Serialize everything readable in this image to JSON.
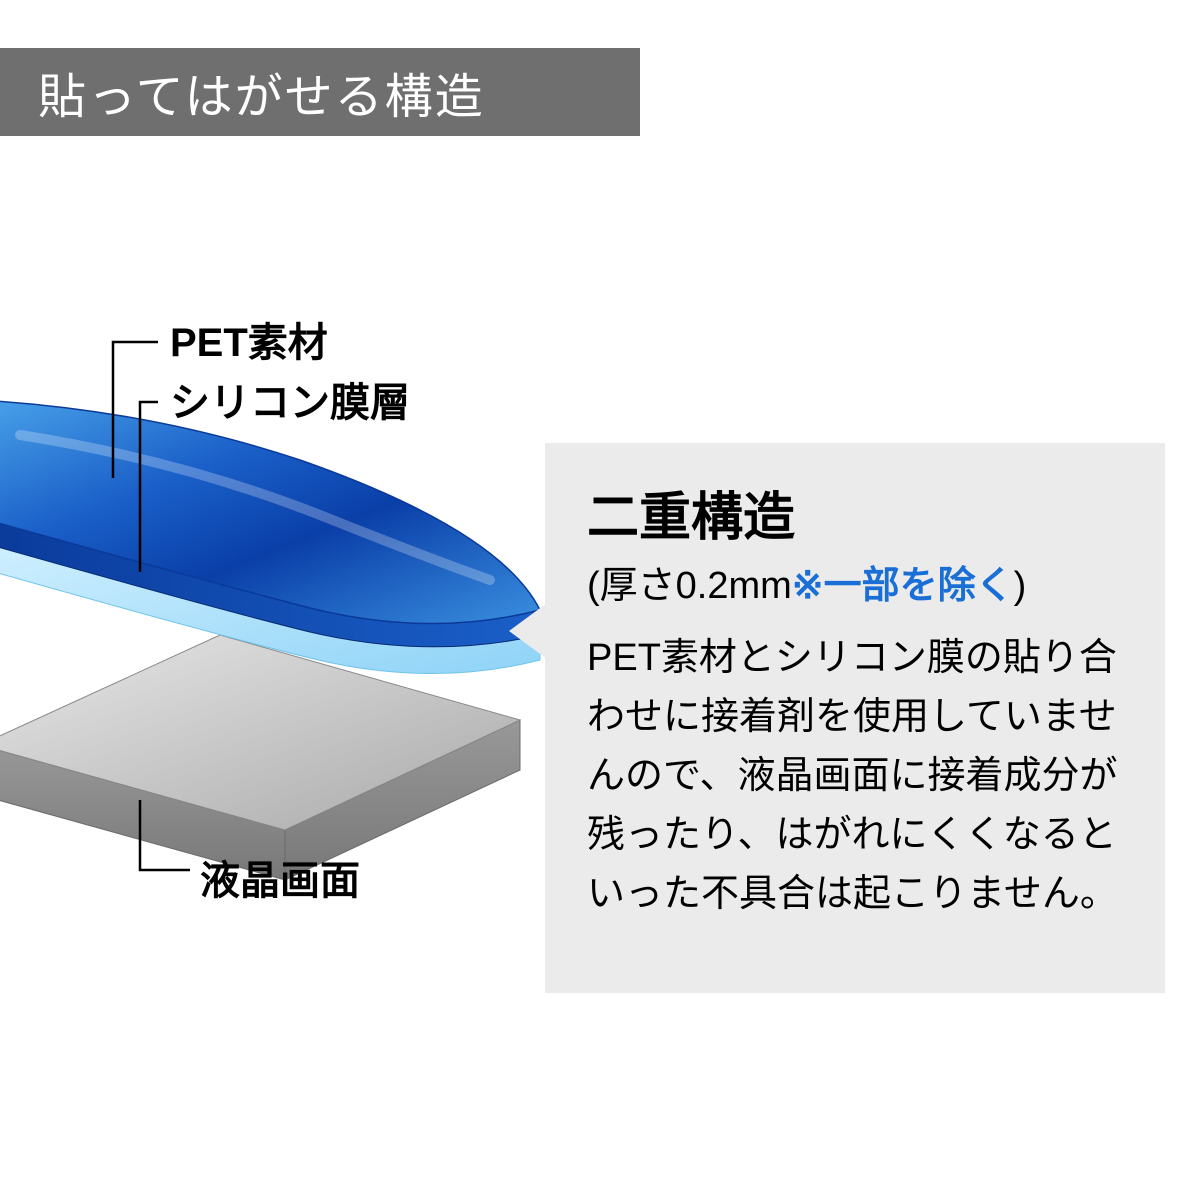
{
  "header": {
    "text": "貼ってはがせる構造",
    "bg_color": "#6f6f6f",
    "text_color": "#ffffff",
    "fontsize": 48
  },
  "labels": {
    "pet": "PET素材",
    "silicone": "シリコン膜層",
    "lcd": "液晶画面",
    "fontsize": 40,
    "color": "#000000"
  },
  "diagram": {
    "type": "infographic",
    "top_layer": {
      "fill_gradient": [
        "#2f8fe0",
        "#0a3fa8",
        "#2f8fe0"
      ],
      "stroke": "#0a2d7a"
    },
    "silicone_layer": {
      "fill_gradient": [
        "#bfe8ff",
        "#8fd3f7"
      ],
      "stroke": "#5fb9e8"
    },
    "lcd_layer": {
      "fill_gradient": [
        "#d8d8d8",
        "#b8b8b8",
        "#9a9a9a"
      ],
      "side_fill": "#8a8a8a",
      "stroke": "#7a7a7a"
    },
    "leader_line_color": "#000000",
    "leader_line_width": 2
  },
  "callout": {
    "title": "二重構造",
    "subtitle_prefix": "(厚さ0.2mm",
    "subtitle_note": "※一部を除く",
    "subtitle_suffix": ")",
    "note_color": "#1a6fd6",
    "body": "PET素材とシリコン膜の貼り合わせに接着剤を使用していませんので、液晶画面に接着成分が残ったり、はがれにくくなるといった不具合は起こりません。",
    "bg_color": "#ebebeb",
    "title_fontsize": 52,
    "sub_fontsize": 38,
    "body_fontsize": 38
  },
  "background_color": "#ffffff"
}
